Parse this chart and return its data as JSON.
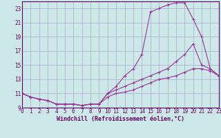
{
  "xlabel": "Windchill (Refroidissement éolien,°C)",
  "background_color": "#cce8e8",
  "grid_color": "#aaaacc",
  "line_color": "#993399",
  "x_hours": [
    0,
    1,
    2,
    3,
    4,
    5,
    6,
    7,
    8,
    9,
    10,
    11,
    12,
    13,
    14,
    15,
    16,
    17,
    18,
    19,
    20,
    21,
    22,
    23
  ],
  "line1": [
    11.0,
    10.5,
    10.2,
    10.0,
    9.5,
    9.5,
    9.5,
    9.3,
    9.5,
    9.5,
    11.0,
    12.0,
    13.5,
    14.5,
    16.5,
    22.5,
    23.0,
    23.5,
    23.8,
    23.8,
    21.5,
    19.0,
    14.5,
    13.5
  ],
  "line2": [
    11.0,
    10.5,
    10.2,
    10.0,
    9.5,
    9.5,
    9.5,
    9.3,
    9.5,
    9.5,
    11.0,
    11.5,
    12.0,
    12.5,
    13.0,
    13.5,
    14.0,
    14.5,
    15.5,
    16.5,
    18.0,
    15.0,
    14.5,
    13.5
  ],
  "line3": [
    11.0,
    10.5,
    10.2,
    10.0,
    9.5,
    9.5,
    9.5,
    9.3,
    9.5,
    9.5,
    10.5,
    11.0,
    11.2,
    11.5,
    12.0,
    12.5,
    13.0,
    13.2,
    13.5,
    14.0,
    14.5,
    14.5,
    14.2,
    13.5
  ],
  "ylim": [
    9,
    24
  ],
  "yticks": [
    9,
    11,
    13,
    15,
    17,
    19,
    21,
    23
  ],
  "xlim": [
    0,
    23
  ],
  "xticks": [
    0,
    1,
    2,
    3,
    4,
    5,
    6,
    7,
    8,
    9,
    10,
    11,
    12,
    13,
    14,
    15,
    16,
    17,
    18,
    19,
    20,
    21,
    22,
    23
  ],
  "tick_fontsize": 5.5,
  "label_fontsize": 6,
  "spine_color": "#660066"
}
